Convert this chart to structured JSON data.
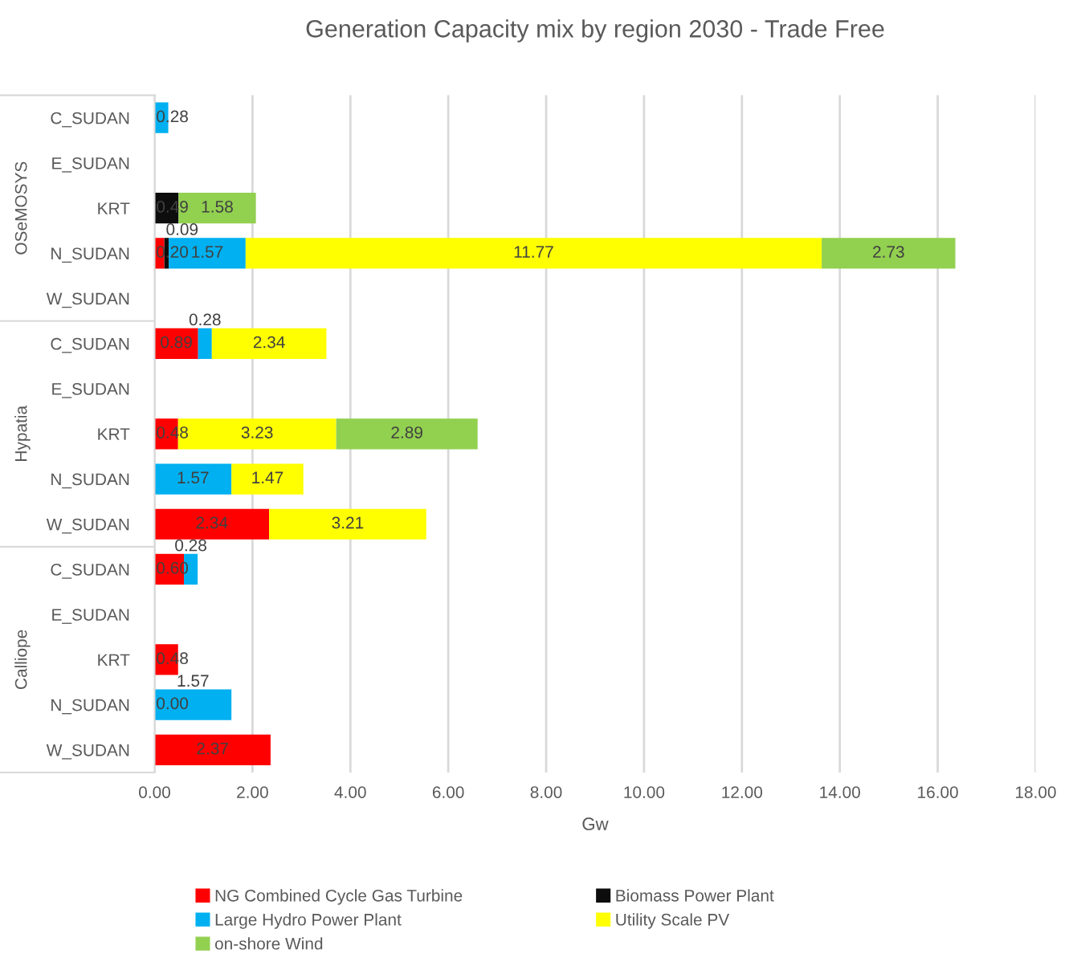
{
  "chart_data": {
    "type": "bar",
    "orientation": "horizontal",
    "stacked": true,
    "title": "Generation Capacity mix by region 2030 - Trade Free",
    "xlabel": "Gw",
    "categories": [
      "C_SUDAN",
      "E_SUDAN",
      "KRT",
      "N_SUDAN",
      "W_SUDAN",
      "C_SUDAN",
      "E_SUDAN",
      "KRT",
      "N_SUDAN",
      "W_SUDAN",
      "C_SUDAN",
      "E_SUDAN",
      "KRT",
      "N_SUDAN",
      "W_SUDAN"
    ],
    "annotations": [
      "OSeMOSYS",
      "Hypatia",
      "Calliope"
    ],
    "series": [
      {
        "name": "NG Combined Cycle Gas Turbine",
        "color": "#ff0000",
        "values": [
          null,
          null,
          null,
          0.2,
          null,
          0.89,
          null,
          0.48,
          null,
          2.34,
          0.6,
          null,
          0.48,
          0.0,
          2.37
        ],
        "value_labels": [
          null,
          null,
          null,
          "0.20",
          null,
          "0.89",
          null,
          "0.48",
          null,
          "2.34",
          "0.60",
          null,
          "0.48",
          "0.00",
          "2.37"
        ]
      },
      {
        "name": "Biomass Power Plant",
        "color": "#0d0d0d",
        "values": [
          null,
          null,
          0.49,
          0.09,
          null,
          null,
          null,
          null,
          null,
          null,
          null,
          null,
          null,
          null,
          null
        ],
        "value_labels": [
          null,
          null,
          "0.49",
          "0.09",
          null,
          null,
          null,
          null,
          null,
          null,
          null,
          null,
          null,
          null,
          null
        ]
      },
      {
        "name": "Large Hydro Power Plant",
        "color": "#00b0f0",
        "values": [
          0.28,
          null,
          null,
          1.57,
          null,
          0.28,
          null,
          null,
          1.57,
          null,
          0.28,
          null,
          null,
          1.57,
          null
        ],
        "value_labels": [
          "0.28",
          null,
          null,
          "1.57",
          null,
          "0.28",
          null,
          null,
          "1.57",
          null,
          "0.28",
          null,
          null,
          "1.57",
          null
        ]
      },
      {
        "name": "Utility Scale PV",
        "color": "#ffff00",
        "values": [
          null,
          null,
          null,
          11.77,
          null,
          2.34,
          null,
          3.23,
          1.47,
          3.21,
          null,
          null,
          null,
          null,
          null
        ],
        "value_labels": [
          null,
          null,
          null,
          "11.77",
          null,
          "2.34",
          null,
          "3.23",
          "1.47",
          "3.21",
          null,
          null,
          null,
          null,
          null
        ]
      },
      {
        "name": "on-shore Wind",
        "color": "#92d050",
        "values": [
          null,
          null,
          1.58,
          2.73,
          null,
          null,
          null,
          2.89,
          null,
          null,
          null,
          null,
          null,
          null,
          null
        ],
        "value_labels": [
          null,
          null,
          "1.58",
          "2.73",
          null,
          null,
          null,
          "2.89",
          null,
          null,
          null,
          null,
          null,
          null,
          null
        ]
      }
    ],
    "xlim": [
      0,
      18
    ],
    "xticks": [
      {
        "value": 0,
        "label": "0.00"
      },
      {
        "value": 2,
        "label": "2.00"
      },
      {
        "value": 4,
        "label": "4.00"
      },
      {
        "value": 6,
        "label": "6.00"
      },
      {
        "value": 8,
        "label": "8.00"
      },
      {
        "value": 10,
        "label": "10.00"
      },
      {
        "value": 12,
        "label": "12.00"
      },
      {
        "value": 14,
        "label": "14.00"
      },
      {
        "value": 16,
        "label": "16.00"
      },
      {
        "value": 18,
        "label": "18.00"
      }
    ],
    "grid": "x",
    "legend": "bottom"
  }
}
